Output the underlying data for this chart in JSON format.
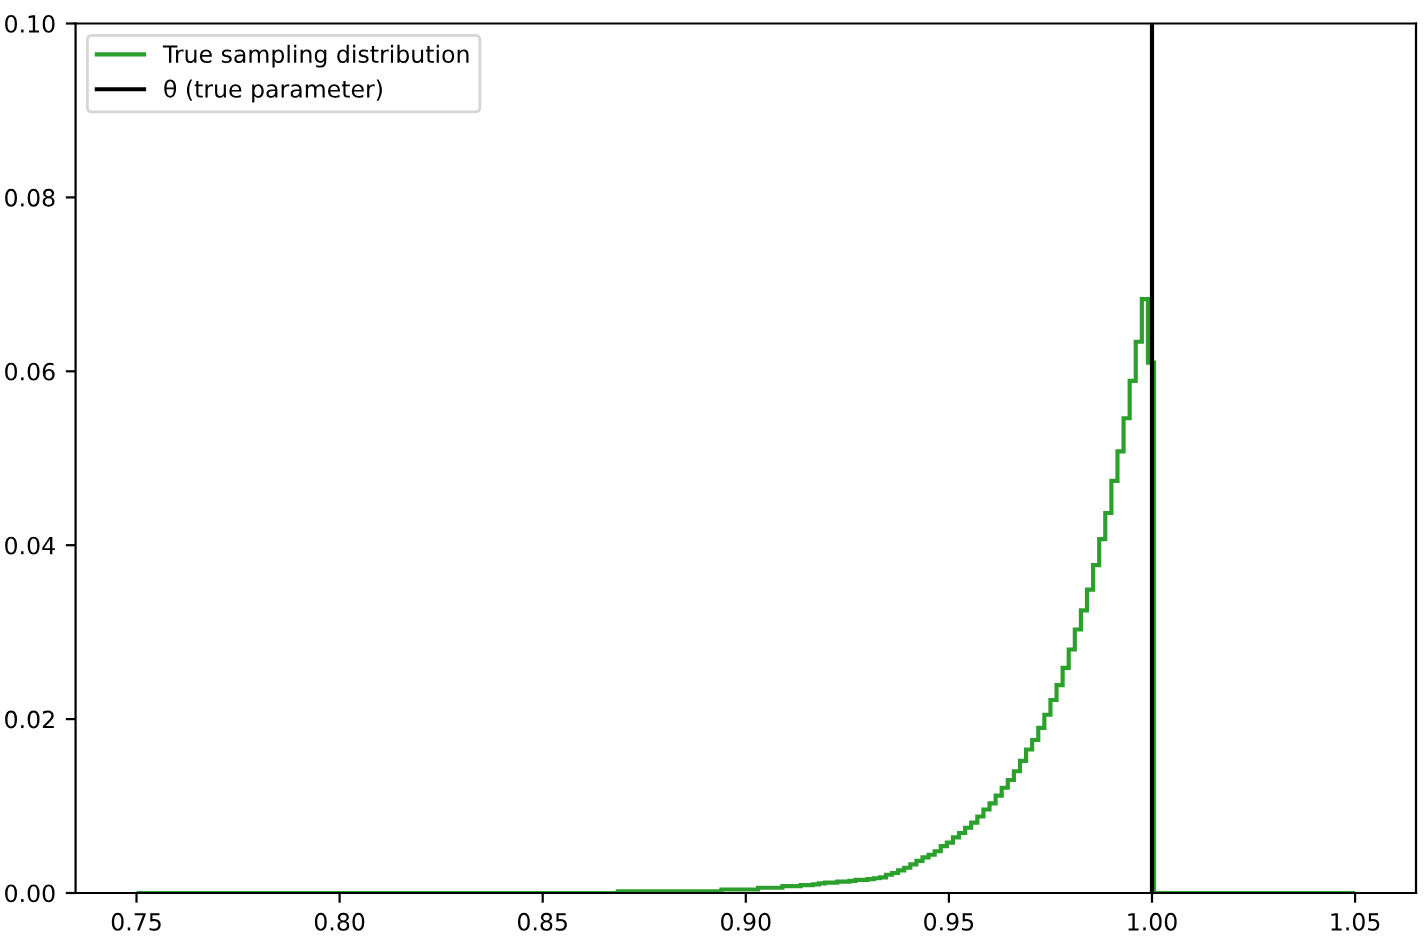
{
  "chart_data": {
    "type": "histogram",
    "bins": [
      0.75,
      0.8685,
      0.87,
      0.8715,
      0.873,
      0.8745,
      0.876,
      0.8775,
      0.879,
      0.8805,
      0.882,
      0.8835,
      0.885,
      0.8865,
      0.888,
      0.8895,
      0.891,
      0.8925,
      0.894,
      0.8955,
      0.897,
      0.8985,
      0.9,
      0.9015,
      0.903,
      0.9045,
      0.906,
      0.9075,
      0.909,
      0.9105,
      0.912,
      0.9135,
      0.915,
      0.9165,
      0.918,
      0.9195,
      0.921,
      0.9225,
      0.924,
      0.9255,
      0.927,
      0.9285,
      0.93,
      0.9315,
      0.933,
      0.9345,
      0.936,
      0.9375,
      0.939,
      0.9405,
      0.942,
      0.9435,
      0.945,
      0.9465,
      0.948,
      0.9495,
      0.951,
      0.9525,
      0.954,
      0.9555,
      0.957,
      0.9585,
      0.96,
      0.9615,
      0.963,
      0.9645,
      0.966,
      0.9675,
      0.969,
      0.9705,
      0.972,
      0.9735,
      0.975,
      0.9765,
      0.978,
      0.9795,
      0.981,
      0.9825,
      0.984,
      0.9855,
      0.987,
      0.9885,
      0.99,
      0.9915,
      0.993,
      0.9945,
      0.996,
      0.9975,
      0.999,
      1.0005,
      1.05
    ],
    "series": [
      {
        "name": "True sampling distribution",
        "color": "#2ca02c",
        "values": [
          0,
          0.0002,
          0.0002,
          0.0002,
          0.0002,
          0.0002,
          0.0002,
          0.0002,
          0.0002,
          0.0002,
          0.0002,
          0.0002,
          0.0002,
          0.0002,
          0.0002,
          0.0002,
          0.0002,
          0.0002,
          0.0004,
          0.0004,
          0.0004,
          0.0004,
          0.0004,
          0.0004,
          0.0006,
          0.0006,
          0.0006,
          0.0006,
          0.0008,
          0.0008,
          0.0008,
          0.0009,
          0.0009,
          0.001,
          0.0011,
          0.0012,
          0.0012,
          0.0013,
          0.0013,
          0.0014,
          0.0015,
          0.0015,
          0.0016,
          0.0017,
          0.0018,
          0.0021,
          0.0023,
          0.0026,
          0.0029,
          0.0033,
          0.0037,
          0.0041,
          0.0044,
          0.0048,
          0.0054,
          0.0058,
          0.0064,
          0.0069,
          0.0075,
          0.0081,
          0.0088,
          0.0096,
          0.0103,
          0.0112,
          0.0121,
          0.013,
          0.014,
          0.0152,
          0.0165,
          0.0176,
          0.019,
          0.0205,
          0.0222,
          0.0239,
          0.0259,
          0.028,
          0.0303,
          0.0325,
          0.0349,
          0.0377,
          0.0407,
          0.0437,
          0.0474,
          0.0508,
          0.0546,
          0.0589,
          0.0634,
          0.0683,
          0.061,
          0
        ]
      }
    ],
    "ref_lines": [
      {
        "axis": "x",
        "value": 1.0,
        "label": "θ (true parameter)",
        "color": "#000000"
      }
    ],
    "xlim": [
      0.735,
      1.065
    ],
    "xticks": [
      0.75,
      {
        "value": 0.8,
        "label": "0.80"
      },
      0.85,
      {
        "value": 0.9,
        "label": "0.90"
      },
      0.95,
      {
        "value": 1.0,
        "label": "1.00"
      },
      1.05
    ],
    "ylim": [
      0,
      0.1
    ],
    "yticks": [
      {
        "value": 0,
        "label": "0.00"
      },
      0.02,
      0.04,
      0.06,
      0.08,
      {
        "value": 0.1,
        "label": "0.10"
      }
    ],
    "legend": "top left",
    "grid": false
  }
}
